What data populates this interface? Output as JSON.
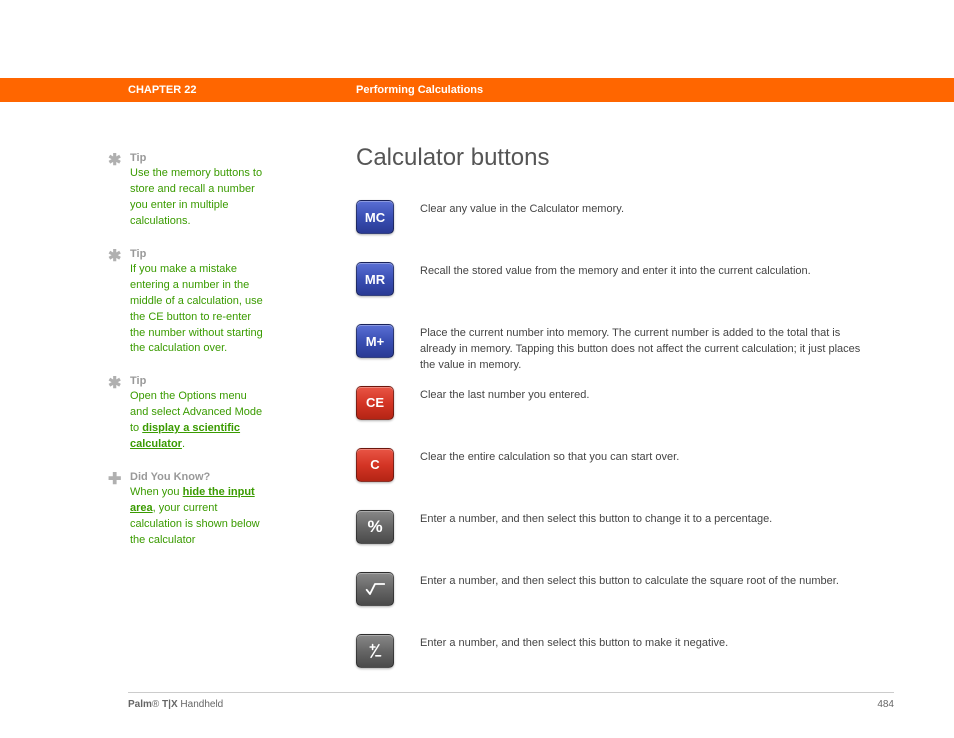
{
  "header": {
    "chapter": "CHAPTER 22",
    "title": "Performing Calculations",
    "bar_color": "#ff6600"
  },
  "sidebar": {
    "tips": [
      {
        "icon": "star",
        "heading": "Tip",
        "text": "Use the memory buttons to store and recall a number you enter in multiple calculations."
      },
      {
        "icon": "star",
        "heading": "Tip",
        "text": "If you make a mistake entering a number in the middle of a calculation, use the CE button to re-enter the number without starting the calculation over."
      },
      {
        "icon": "star",
        "heading": "Tip",
        "pre": "Open the Options menu and select Advanced Mode to ",
        "link": "display a scientific calculator",
        "post": "."
      },
      {
        "icon": "plus",
        "heading": "Did You Know?",
        "pre": "When you ",
        "link": "hide the input area",
        "post": ", your current calculation is shown below the calculator"
      }
    ],
    "tip_color": "#3a9b00",
    "heading_color": "#999999"
  },
  "main": {
    "heading": "Calculator buttons",
    "buttons": [
      {
        "label": "MC",
        "color": "blue",
        "desc": "Clear any value in the Calculator memory."
      },
      {
        "label": "MR",
        "color": "blue",
        "desc": "Recall the stored value from the memory and enter it into the current calculation."
      },
      {
        "label": "M+",
        "color": "blue",
        "desc": "Place the current number into memory. The current number is added to the total that is already in memory. Tapping this button does not affect the current calculation; it just places the value in memory.",
        "tight": true
      },
      {
        "label": "CE",
        "color": "red",
        "desc": "Clear the last number you entered."
      },
      {
        "label": "C",
        "color": "red",
        "desc": "Clear the entire calculation so that you can start over."
      },
      {
        "label": "%",
        "color": "gray",
        "desc": "Enter a number, and then select this button to change it to a percentage."
      },
      {
        "label": "√",
        "color": "gray",
        "desc": "Enter a number, and then select this button to calculate the square root of the number."
      },
      {
        "label": "+/-",
        "color": "gray",
        "desc": "Enter a number, and then select this button to make it negative."
      }
    ],
    "colors": {
      "blue": "#3a4fb4",
      "red": "#d43525",
      "gray": "#666666"
    }
  },
  "footer": {
    "brand_bold": "Palm",
    "brand_reg": "®",
    "brand_model": " T|X",
    "brand_suffix": " Handheld",
    "page": "484"
  }
}
